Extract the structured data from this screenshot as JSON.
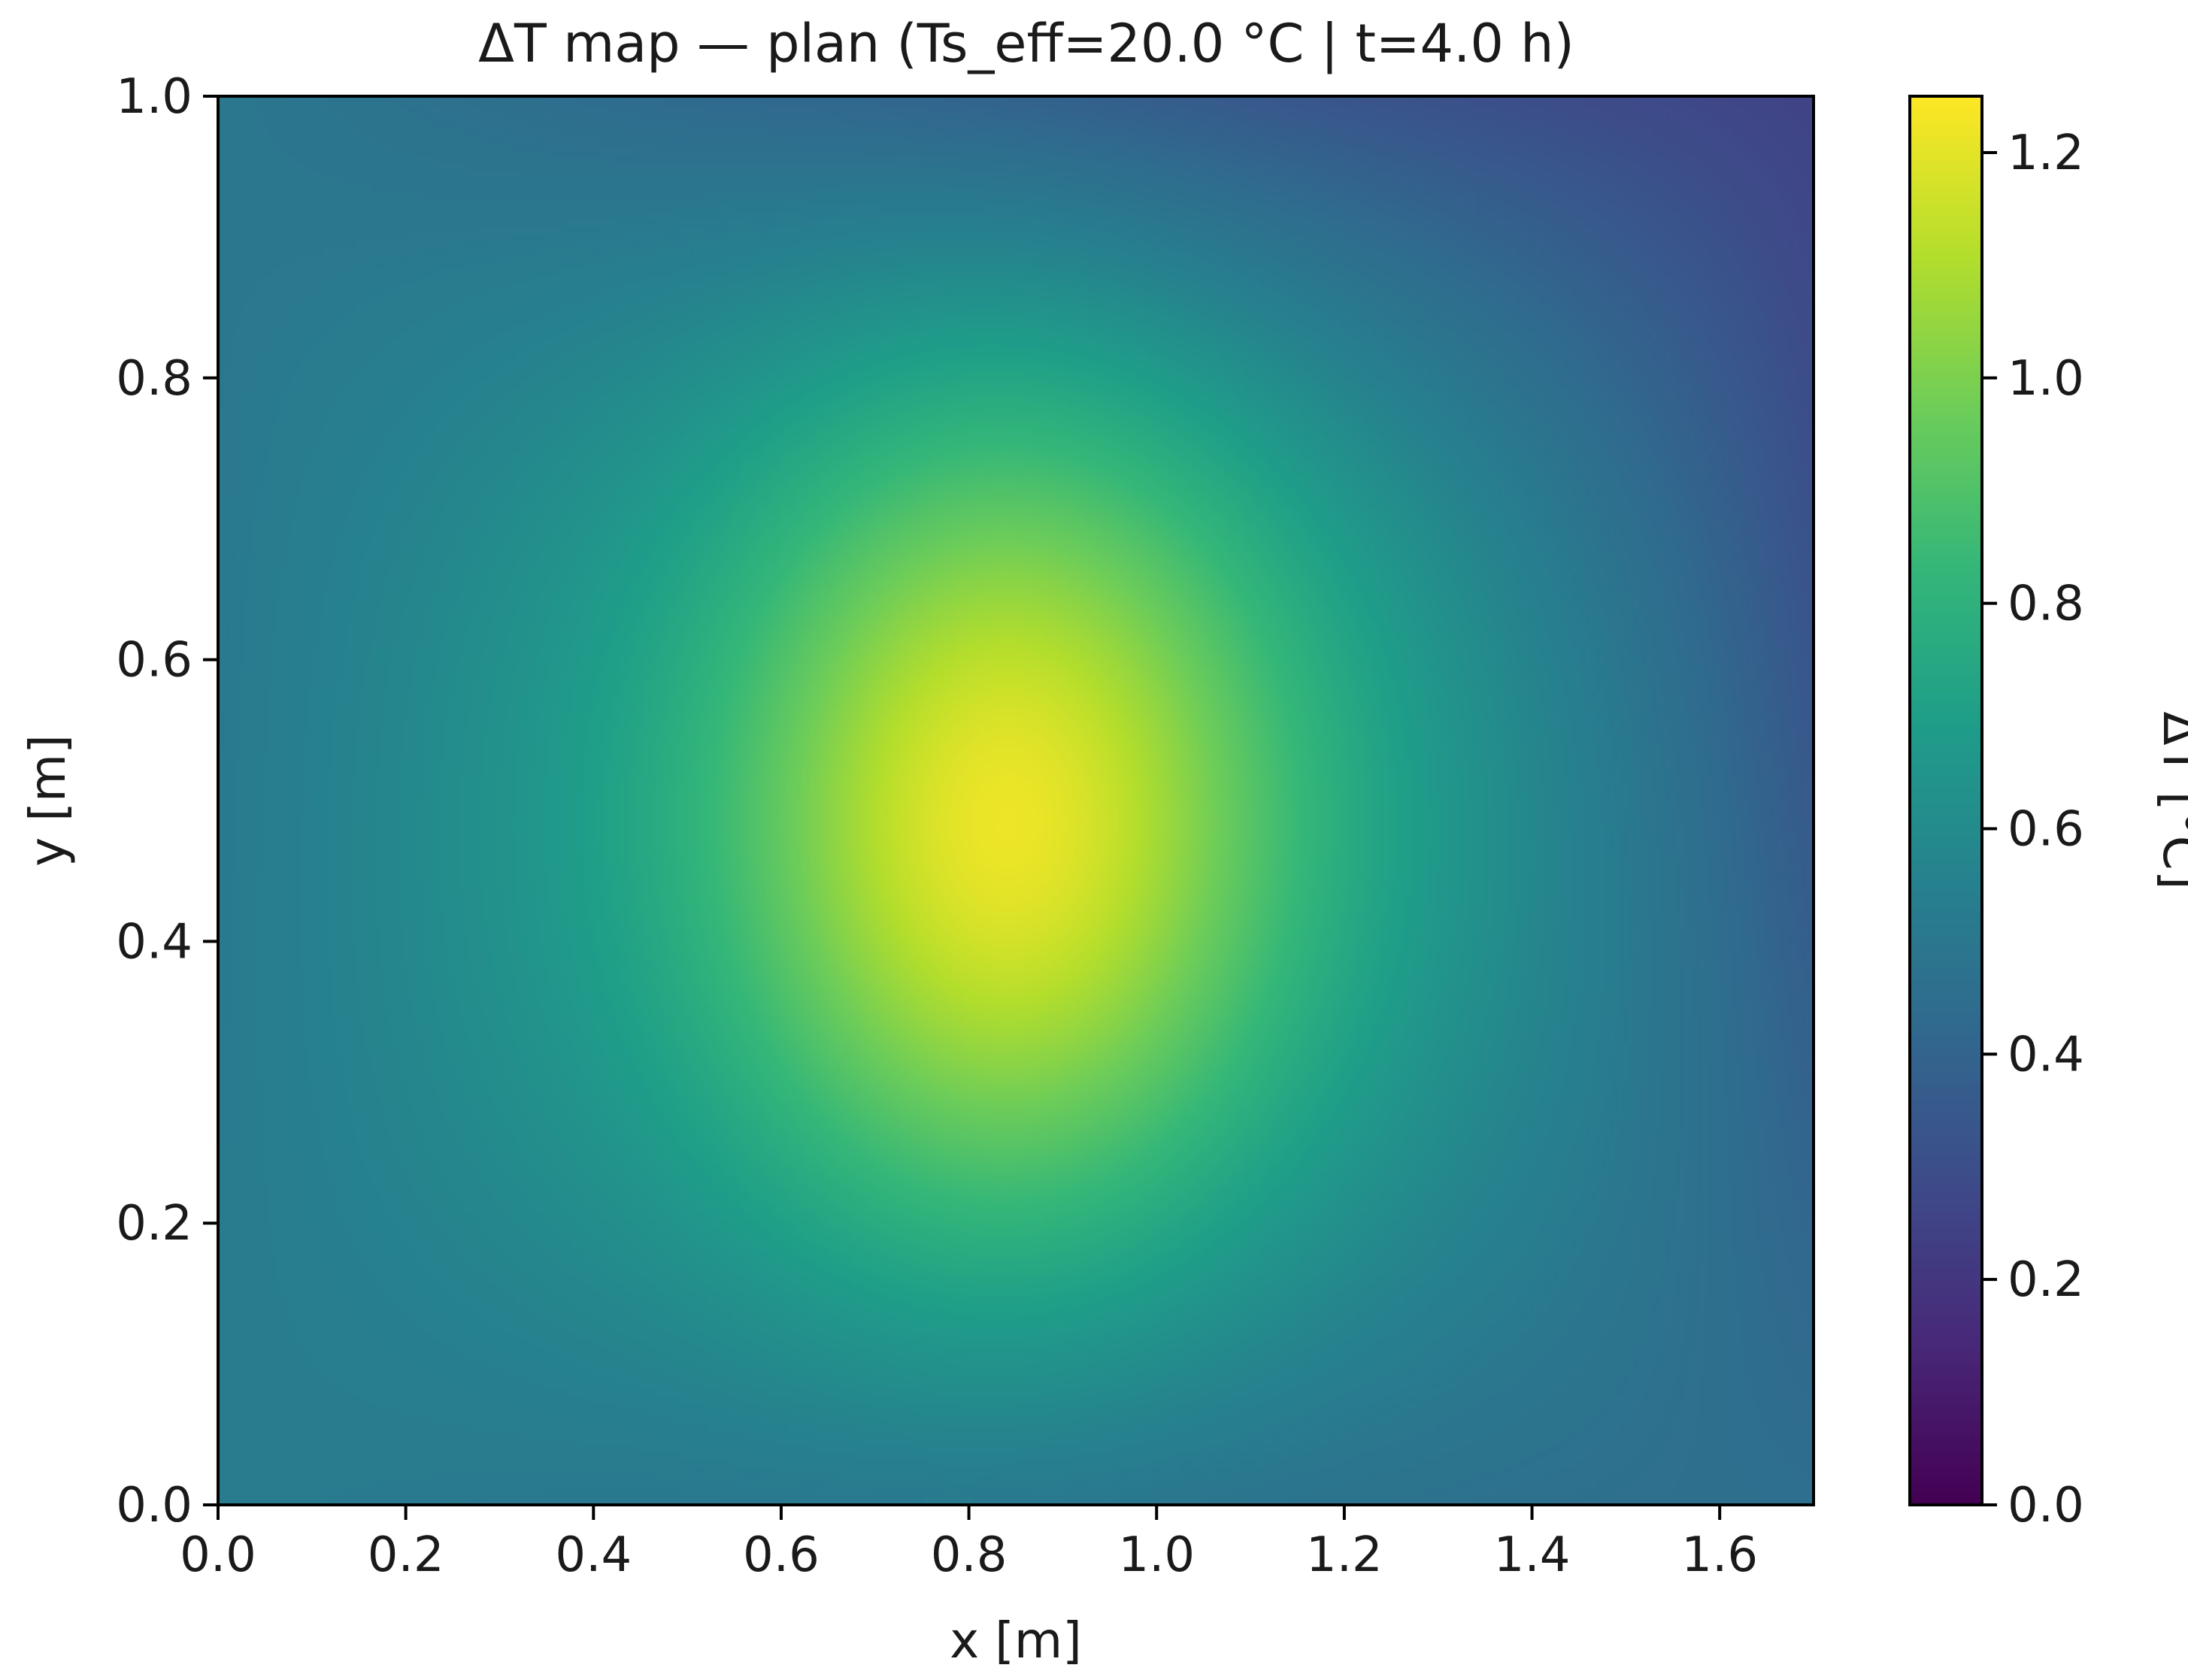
{
  "chart_data": {
    "type": "heatmap",
    "title": "ΔT map — plan  (Ts_eff=20.0 °C | t=4.0 h)",
    "xlabel": "x [m]",
    "ylabel": "y [m]",
    "xlim": [
      0.0,
      1.7
    ],
    "ylim": [
      0.0,
      1.0
    ],
    "x_ticks": [
      "0.0",
      "0.2",
      "0.4",
      "0.6",
      "0.8",
      "1.0",
      "1.2",
      "1.4",
      "1.6"
    ],
    "y_ticks": [
      "0.0",
      "0.2",
      "0.4",
      "0.6",
      "0.8",
      "1.0"
    ],
    "colorbar": {
      "label": "ΔT [°C]",
      "range": [
        0.0,
        1.25
      ],
      "ticks": [
        "0.0",
        "0.2",
        "0.4",
        "0.6",
        "0.8",
        "1.0",
        "1.2"
      ],
      "colormap": "viridis"
    },
    "field": {
      "peak_location": [
        0.84,
        0.48
      ],
      "peak_value": 1.22,
      "edge_values": {
        "left": 0.6,
        "right": 0.5,
        "bottom": 0.6,
        "top": 0.58
      },
      "corner_values": {
        "bottom-left": 0.52,
        "top-left": 0.5,
        "bottom-right": 0.45,
        "top-right": 0.25
      }
    }
  }
}
